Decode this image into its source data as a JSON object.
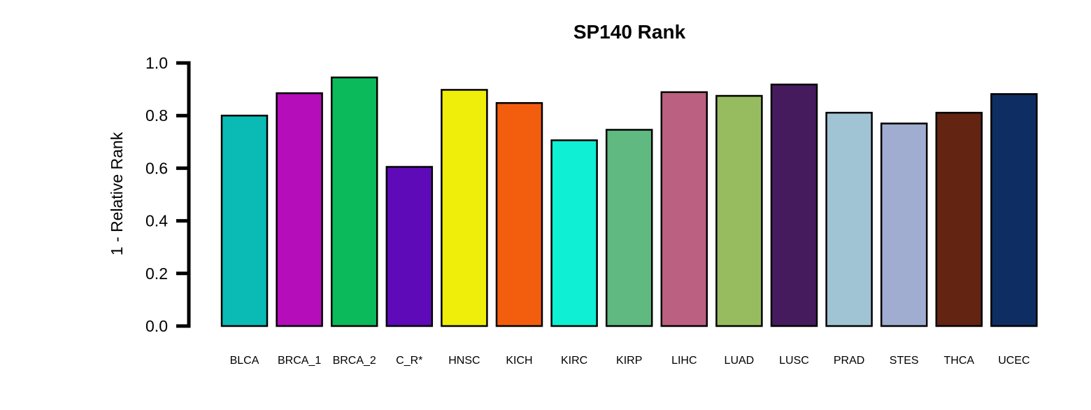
{
  "chart_data": {
    "type": "bar",
    "title": "SP140 Rank",
    "xlabel": "",
    "ylabel": "1 - Relative Rank",
    "ylim": [
      0,
      1.0
    ],
    "yticks": [
      "0.0",
      "0.2",
      "0.4",
      "0.6",
      "0.8",
      "1.0"
    ],
    "ytick_values": [
      0,
      0.2,
      0.4,
      0.6,
      0.8,
      1.0
    ],
    "grid": false,
    "categories": [
      "BLCA",
      "BRCA_1",
      "BRCA_2",
      "C_R*",
      "HNSC",
      "KICH",
      "KIRC",
      "KIRP",
      "LIHC",
      "LUAD",
      "LUSC",
      "PRAD",
      "STES",
      "THCA",
      "UCEC"
    ],
    "values": [
      0.8,
      0.885,
      0.945,
      0.605,
      0.898,
      0.848,
      0.706,
      0.746,
      0.889,
      0.875,
      0.918,
      0.811,
      0.77,
      0.811,
      0.882
    ],
    "colors": [
      "#0ABAB5",
      "#B50DBA",
      "#0BBA5A",
      "#5E0AB8",
      "#EEEE0A",
      "#F25E0E",
      "#0EEFD3",
      "#60B980",
      "#BC6081",
      "#97BC60",
      "#461B5E",
      "#A0C4D4",
      "#A0ACD0",
      "#632411",
      "#0E2E63"
    ]
  }
}
